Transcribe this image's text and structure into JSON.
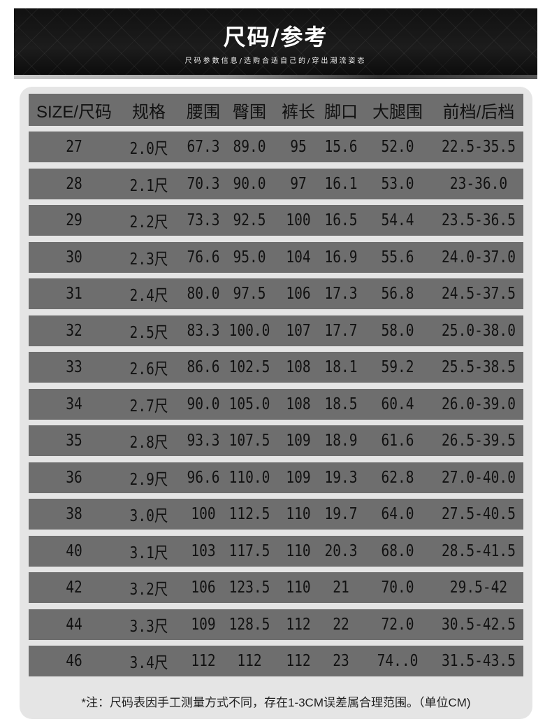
{
  "banner": {
    "title": "尺码/参考",
    "subtitle": "尺码参数信息/选购合适自己的/穿出潮流姿态"
  },
  "table": {
    "headers": [
      "SIZE/尺码",
      "规格",
      "腰围",
      "臀围",
      "裤长",
      "脚口",
      "大腿围",
      "前档/后档"
    ],
    "rows": [
      [
        "27",
        "2.0尺",
        "67.3",
        "89.0",
        "95",
        "15.6",
        "52.0",
        "22.5-35.5"
      ],
      [
        "28",
        "2.1尺",
        "70.3",
        "90.0",
        "97",
        "16.1",
        "53.0",
        "23-36.0"
      ],
      [
        "29",
        "2.2尺",
        "73.3",
        "92.5",
        "100",
        "16.5",
        "54.4",
        "23.5-36.5"
      ],
      [
        "30",
        "2.3尺",
        "76.6",
        "95.0",
        "104",
        "16.9",
        "55.6",
        "24.0-37.0"
      ],
      [
        "31",
        "2.4尺",
        "80.0",
        "97.5",
        "106",
        "17.3",
        "56.8",
        "24.5-37.5"
      ],
      [
        "32",
        "2.5尺",
        "83.3",
        "100.0",
        "107",
        "17.7",
        "58.0",
        "25.0-38.0"
      ],
      [
        "33",
        "2.6尺",
        "86.6",
        "102.5",
        "108",
        "18.1",
        "59.2",
        "25.5-38.5"
      ],
      [
        "34",
        "2.7尺",
        "90.0",
        "105.0",
        "108",
        "18.5",
        "60.4",
        "26.0-39.0"
      ],
      [
        "35",
        "2.8尺",
        "93.3",
        "107.5",
        "109",
        "18.9",
        "61.6",
        "26.5-39.5"
      ],
      [
        "36",
        "2.9尺",
        "96.6",
        "110.0",
        "109",
        "19.3",
        "62.8",
        "27.0-40.0"
      ],
      [
        "38",
        "3.0尺",
        "100",
        "112.5",
        "110",
        "19.7",
        "64.0",
        "27.5-40.5"
      ],
      [
        "40",
        "3.1尺",
        "103",
        "117.5",
        "110",
        "20.3",
        "68.0",
        "28.5-41.5"
      ],
      [
        "42",
        "3.2尺",
        "106",
        "123.5",
        "110",
        "21",
        "70.0",
        "29.5-42"
      ],
      [
        "44",
        "3.3尺",
        "109",
        "128.5",
        "112",
        "22",
        "72.0",
        "30.5-42.5"
      ],
      [
        "46",
        "3.4尺",
        "112",
        "112",
        "112",
        "23",
        "74..0",
        "31.5-43.5"
      ]
    ]
  },
  "note": "*注：尺码表因手工测量方式不同，存在1-3CM误差属合理范围。（单位CM)"
}
